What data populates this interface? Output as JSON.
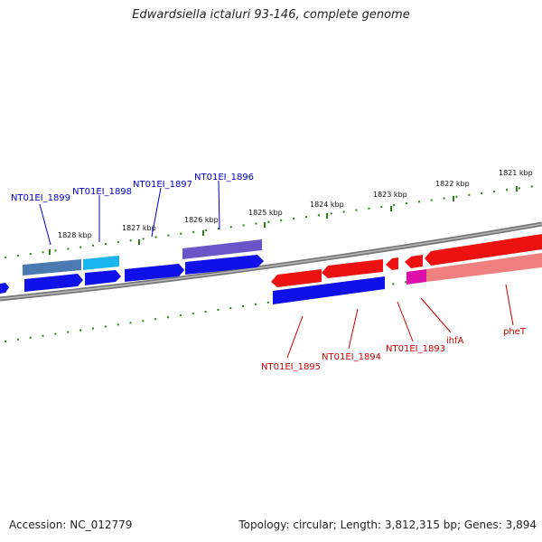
{
  "title": "Edwardsiella ictaluri 93-146, complete genome",
  "footer": {
    "accession": "Accession: NC_012779",
    "summary": "Topology: circular; Length: 3,812,315 bp; Genes: 3,894"
  },
  "ticks": [
    {
      "label": "1828 kbp"
    },
    {
      "label": "1827 kbp"
    },
    {
      "label": "1826 kbp"
    },
    {
      "label": "1825 kbp"
    },
    {
      "label": "1824 kbp"
    },
    {
      "label": "1823 kbp"
    },
    {
      "label": "1822 kbp"
    },
    {
      "label": "1821 kbp"
    }
  ],
  "genes_top": [
    {
      "label": "NT01EI_1899"
    },
    {
      "label": "NT01EI_1898"
    },
    {
      "label": "NT01EI_1897"
    },
    {
      "label": "NT01EI_1896"
    }
  ],
  "genes_bottom": [
    {
      "label": "NT01EI_1895"
    },
    {
      "label": "NT01EI_1894"
    },
    {
      "label": "NT01EI_1893"
    },
    {
      "label": "ihfA"
    },
    {
      "label": "pheT"
    }
  ],
  "colors": {
    "forward_cds": "#1010e8",
    "reverse_cds": "#ee1111",
    "backbone": "#777777",
    "tick": "#2e7d1a",
    "label_forward": "#0000cc",
    "label_reverse": "#cc0000"
  }
}
